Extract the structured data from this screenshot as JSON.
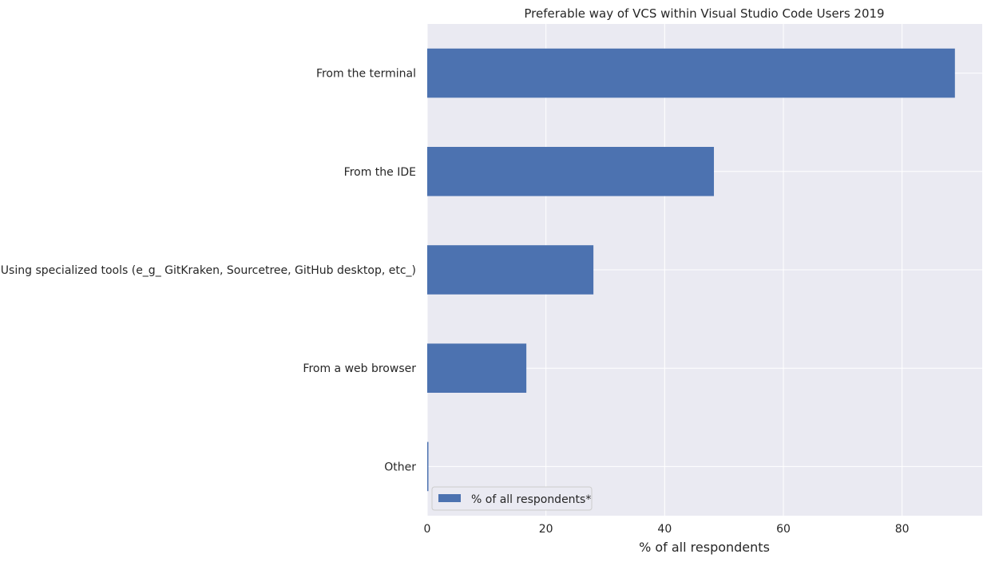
{
  "chart_data": {
    "type": "bar",
    "orientation": "horizontal",
    "title": "Preferable way of VCS within Visual Studio Code Users 2019",
    "xlabel": "% of all respondents",
    "ylabel": "",
    "categories": [
      "From the terminal",
      "From the IDE",
      "Using specialized tools (e_g_ GitKraken, Sourcetree, GitHub desktop, etc_)",
      "From a web browser",
      "Other"
    ],
    "series": [
      {
        "name": "% of all respondents*",
        "values": [
          88.9,
          48.3,
          28.0,
          16.7,
          0.2
        ]
      }
    ],
    "xlim": [
      0,
      93.5
    ],
    "xticks": [
      "0",
      "20",
      "40",
      "60",
      "80"
    ],
    "grid": true,
    "legend_position": "lower-left",
    "colors": {
      "bar": "#4c72b0",
      "background": "#eaeaf2",
      "grid": "#ffffff"
    }
  }
}
